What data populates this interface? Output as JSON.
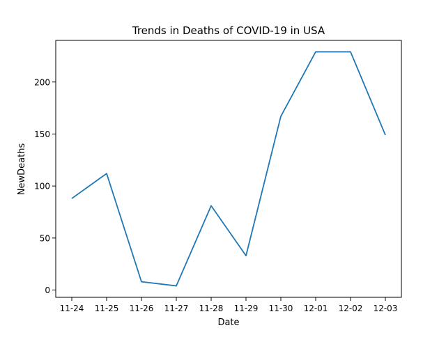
{
  "chart_data": {
    "type": "line",
    "title": "Trends in Deaths of COVID-19 in USA",
    "xlabel": "Date",
    "ylabel": "NewDeaths",
    "categories": [
      "11-24",
      "11-25",
      "11-26",
      "11-27",
      "11-28",
      "11-29",
      "11-30",
      "12-01",
      "12-02",
      "12-03"
    ],
    "series": [
      {
        "values": [
          88,
          112,
          8,
          4,
          81,
          33,
          167,
          229,
          229,
          149
        ],
        "color": "#1f77b4"
      }
    ],
    "y_ticks": [
      "0",
      "50",
      "100",
      "150",
      "200"
    ],
    "ylim": [
      -7,
      240
    ],
    "grid": false,
    "legend": "none"
  }
}
